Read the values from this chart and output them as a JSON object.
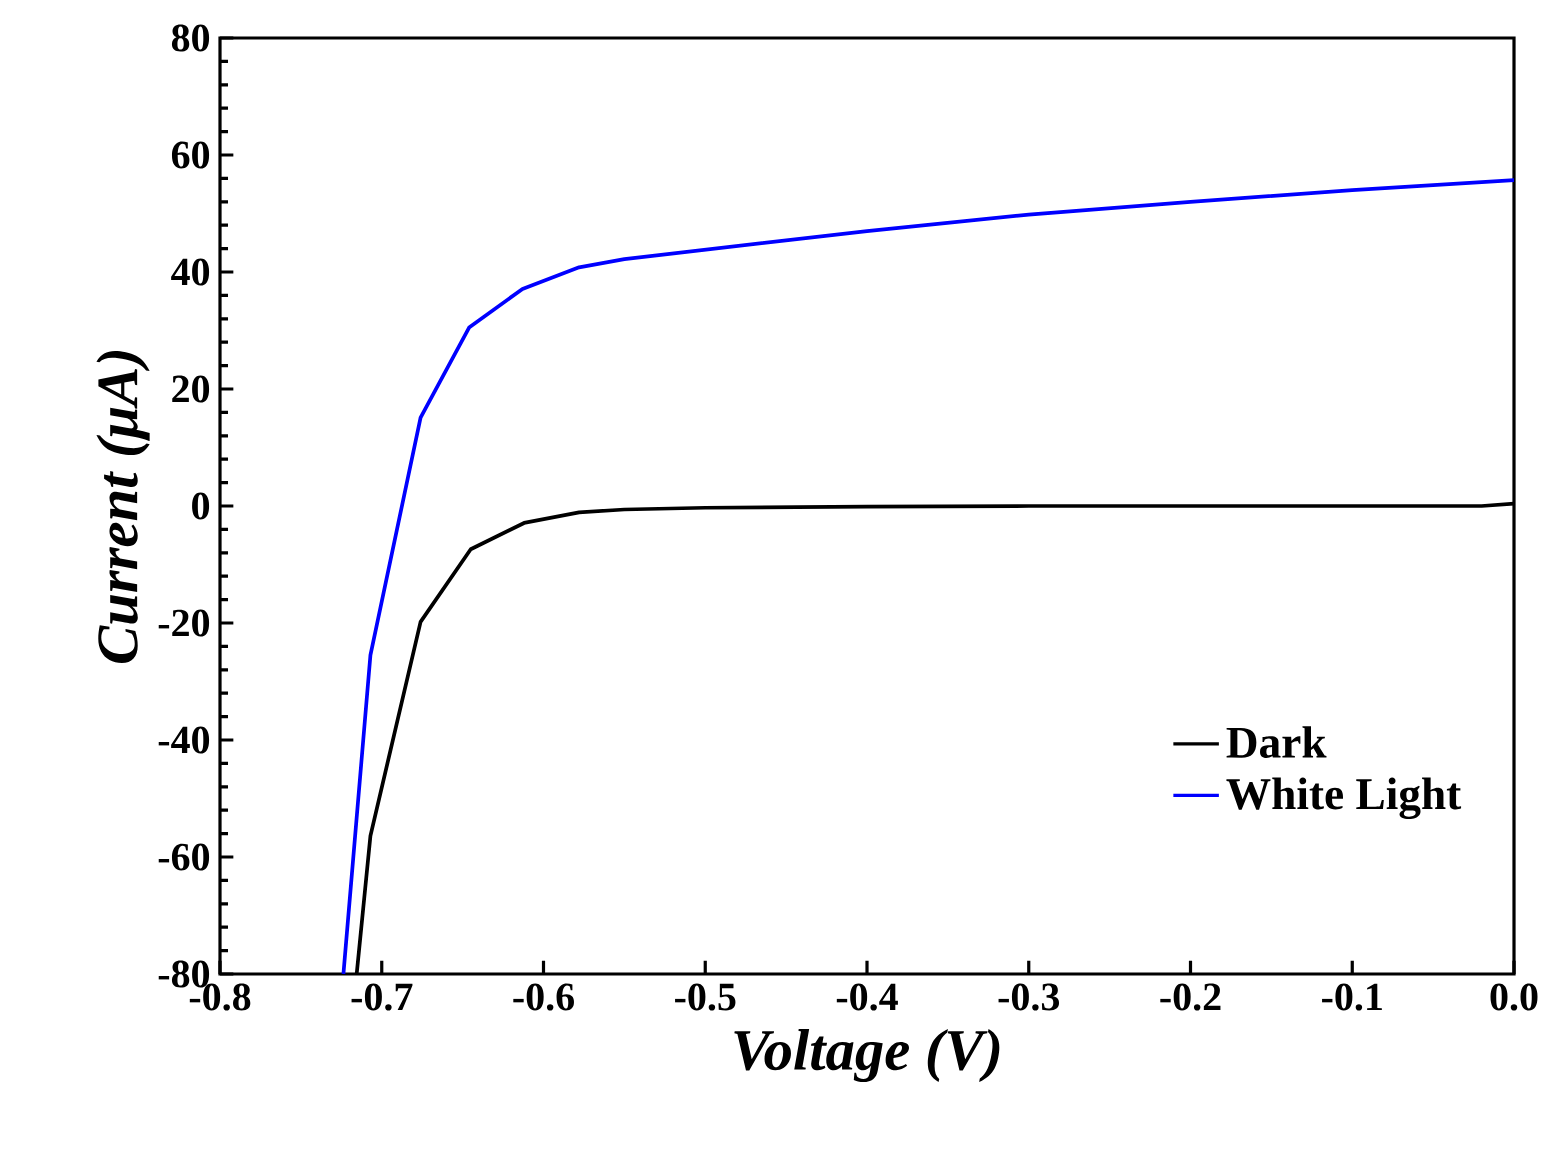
{
  "chart_data": {
    "type": "line",
    "xlabel": "Voltage (V)",
    "ylabel": "Current (μA)",
    "xlim": [
      -0.8,
      0.0
    ],
    "ylim": [
      -80,
      80
    ],
    "xticks": [
      {
        "value": -0.8,
        "label": "-0.8"
      },
      {
        "value": -0.7,
        "label": "-0.7"
      },
      {
        "value": -0.6,
        "label": "-0.6"
      },
      {
        "value": -0.5,
        "label": "-0.5"
      },
      {
        "value": -0.4,
        "label": "-0.4"
      },
      {
        "value": -0.3,
        "label": "-0.3"
      },
      {
        "value": -0.2,
        "label": "-0.2"
      },
      {
        "value": -0.1,
        "label": "-0.1"
      },
      {
        "value": 0.0,
        "label": "0.0"
      }
    ],
    "yticks": [
      -80,
      -60,
      -40,
      -20,
      0,
      20,
      40,
      60,
      80
    ],
    "legend": "bottom right",
    "grid": false,
    "marker": "none",
    "line_style": "solid",
    "series": [
      {
        "name": "Dark",
        "color": "#000000",
        "x": [
          -0.7155,
          -0.707,
          -0.676,
          -0.645,
          -0.612,
          -0.578,
          -0.55,
          -0.5,
          -0.4,
          -0.3,
          -0.2,
          -0.1,
          -0.02,
          0.0
        ],
        "values": [
          -80,
          -56.4,
          -19.8,
          -7.4,
          -2.9,
          -1.1,
          -0.6,
          -0.3,
          -0.1,
          0,
          0,
          0,
          0,
          0.4
        ]
      },
      {
        "name": "White Light",
        "color": "#0000ff",
        "x": [
          -0.7237,
          -0.707,
          -0.676,
          -0.646,
          -0.613,
          -0.578,
          -0.55,
          -0.5,
          -0.4,
          -0.3,
          -0.2,
          -0.1,
          0.0
        ],
        "values": [
          -80,
          -25.5,
          15.1,
          30.5,
          37.1,
          40.8,
          42.2,
          43.8,
          47,
          49.8,
          52,
          54,
          55.7
        ]
      }
    ]
  }
}
